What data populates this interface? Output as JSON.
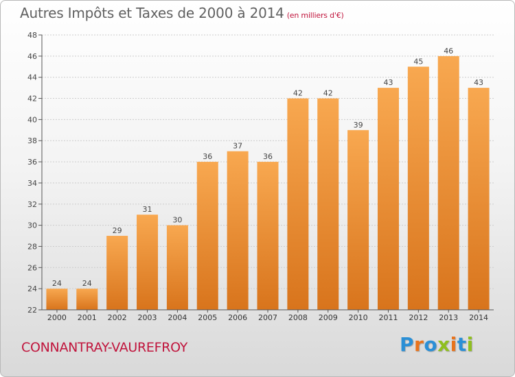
{
  "title": {
    "main": "Autres Impôts et Taxes de 2000 à 2014",
    "unit": "(en milliers d'€)"
  },
  "commune": "CONNANTRAY-VAUREFROY",
  "logo": {
    "text": "Proxiti",
    "colors": [
      "#2a8fd6",
      "#e8731c",
      "#2a8fd6",
      "#8fbf1f",
      "#e8731c",
      "#2a8fd6",
      "#8fbf1f"
    ]
  },
  "colors": {
    "bar_light": "#f8a850",
    "bar_dark": "#d8741c",
    "grid": "#cccccc",
    "axis": "#555555"
  },
  "chart_data": {
    "type": "bar",
    "title": "Autres Impôts et Taxes de 2000 à 2014",
    "xlabel": "",
    "ylabel": "",
    "categories": [
      "2000",
      "2001",
      "2002",
      "2003",
      "2004",
      "2005",
      "2006",
      "2007",
      "2008",
      "2009",
      "2010",
      "2011",
      "2012",
      "2013",
      "2014"
    ],
    "values": [
      24,
      24,
      29,
      31,
      30,
      36,
      37,
      36,
      42,
      42,
      39,
      43,
      45,
      46,
      43
    ],
    "ylim": [
      22,
      48
    ],
    "yticks": [
      22,
      24,
      26,
      28,
      30,
      32,
      34,
      36,
      38,
      40,
      42,
      44,
      46,
      48
    ],
    "grid": true
  }
}
